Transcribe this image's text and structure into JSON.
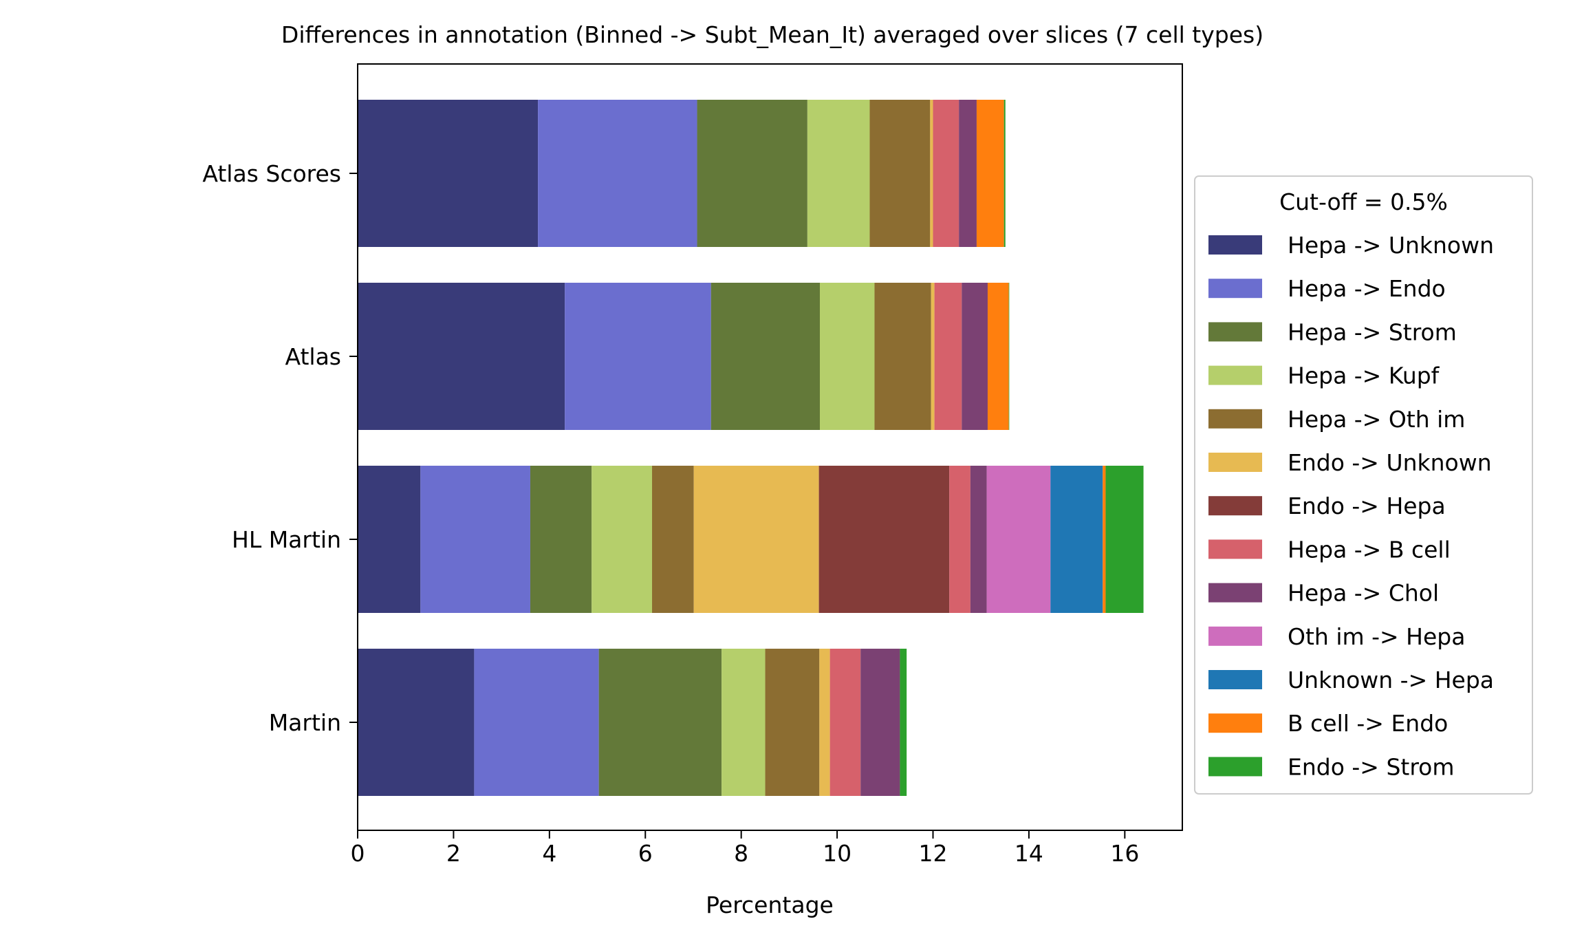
{
  "chart_data": {
    "type": "bar",
    "orientation": "horizontal",
    "stacked": true,
    "title": "Differences in annotation (Binned -> Subt_Mean_It) averaged over slices (7 cell types)",
    "xlabel": "Percentage",
    "ylabel": "",
    "xlim": [
      0,
      17.2
    ],
    "xticks": [
      0,
      2,
      4,
      6,
      8,
      10,
      12,
      14,
      16
    ],
    "xtick_labels": [
      "0",
      "2",
      "4",
      "6",
      "8",
      "10",
      "12",
      "14",
      "16"
    ],
    "categories": [
      "Atlas Scores",
      "Atlas",
      "HL Martin",
      "Martin"
    ],
    "grid": false,
    "legend": {
      "title": "Cut-off = 0.5%",
      "placement": "right-outside"
    },
    "series": [
      {
        "name": "Hepa -> Unknown",
        "color": "#393b79",
        "values": [
          3.76,
          4.32,
          1.31,
          2.43
        ]
      },
      {
        "name": "Hepa -> Endo",
        "color": "#6b6ecf",
        "values": [
          3.32,
          3.05,
          2.29,
          2.6
        ]
      },
      {
        "name": "Hepa -> Strom",
        "color": "#637939",
        "values": [
          2.3,
          2.27,
          1.28,
          2.56
        ]
      },
      {
        "name": "Hepa -> Kupf",
        "color": "#b5cf6b",
        "values": [
          1.3,
          1.14,
          1.26,
          0.91
        ]
      },
      {
        "name": "Hepa -> Oth im",
        "color": "#8c6d31",
        "values": [
          1.26,
          1.18,
          0.87,
          1.13
        ]
      },
      {
        "name": "Endo -> Unknown",
        "color": "#e7ba52",
        "values": [
          0.06,
          0.07,
          2.61,
          0.22
        ]
      },
      {
        "name": "Endo -> Hepa",
        "color": "#843c39",
        "values": [
          0,
          0,
          2.72,
          0
        ]
      },
      {
        "name": "Hepa -> B cell",
        "color": "#d6616b",
        "values": [
          0.54,
          0.57,
          0.44,
          0.64
        ]
      },
      {
        "name": "Hepa -> Chol",
        "color": "#7b4173",
        "values": [
          0.37,
          0.54,
          0.34,
          0.82
        ]
      },
      {
        "name": "Oth im -> Hepa",
        "color": "#ce6dbd",
        "values": [
          0,
          0,
          1.33,
          0
        ]
      },
      {
        "name": "Unknown -> Hepa",
        "color": "#1f77b4",
        "values": [
          0,
          0,
          1.09,
          0
        ]
      },
      {
        "name": "B cell -> Endo",
        "color": "#ff7f0e",
        "values": [
          0.57,
          0.44,
          0.06,
          0
        ]
      },
      {
        "name": "Endo -> Strom",
        "color": "#2ca02c",
        "values": [
          0.03,
          0.01,
          0.79,
          0.14
        ]
      }
    ]
  }
}
